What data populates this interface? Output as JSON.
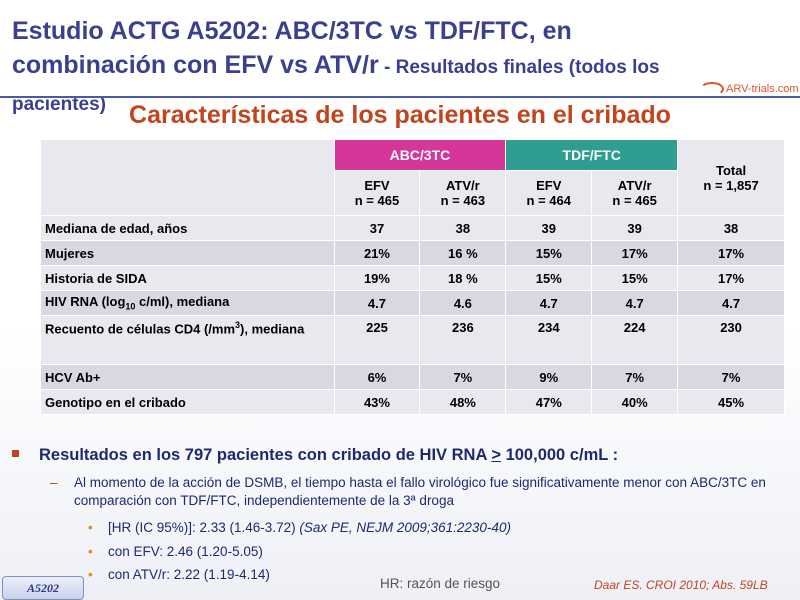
{
  "title": {
    "main": "Estudio ACTG A5202: ABC/3TC vs TDF/FTC, en combinación con EFV vs ATV/r",
    "sub": " - Resultados finales (todos los pacientes)"
  },
  "logo": "ARV-trials.com",
  "heading": "Características de los pacientes en el cribado",
  "table": {
    "group_abc": "ABC/3TC",
    "group_tdf": "TDF/FTC",
    "total_label": "Total",
    "total_n": "n = 1,857",
    "cols": [
      {
        "drug": "EFV",
        "n": "n = 465"
      },
      {
        "drug": "ATV/r",
        "n": "n = 463"
      },
      {
        "drug": "EFV",
        "n": "n = 464"
      },
      {
        "drug": "ATV/r",
        "n": "n = 465"
      }
    ],
    "rows": [
      {
        "label": "Mediana de edad, años",
        "values": [
          "37",
          "38",
          "39",
          "39",
          "38"
        ]
      },
      {
        "label": "Mujeres",
        "values": [
          "21%",
          "16 %",
          "15%",
          "17%",
          "17%"
        ]
      },
      {
        "label": "Historia de SIDA",
        "values": [
          "19%",
          "18 %",
          "15%",
          "15%",
          "17%"
        ]
      },
      {
        "label_pre": "HIV RNA (log",
        "label_sub": "10",
        "label_post": " c/ml), mediana",
        "values": [
          "4.7",
          "4.6",
          "4.7",
          "4.7",
          "4.7"
        ]
      },
      {
        "label_pre": "Recuento de células CD4 (/mm",
        "label_sup": "3",
        "label_post": "), mediana",
        "values": [
          "225",
          "236",
          "234",
          "224",
          "230"
        ]
      },
      {
        "label": "HCV Ab+",
        "values": [
          "6%",
          "7%",
          "9%",
          "7%",
          "7%"
        ]
      },
      {
        "label": "Genotipo en el cribado",
        "values": [
          "43%",
          "48%",
          "47%",
          "40%",
          "45%"
        ]
      }
    ]
  },
  "bullets": {
    "main_pre": "Resultados en los 797 pacientes con cribado de HIV RNA ",
    "main_ge": ">",
    "main_post": " 100,000 c/mL :",
    "sub": "Al momento de la acción de DSMB, el tiempo hasta el fallo virológico fue significativamente menor con ABC/3TC en comparación con TDF/FTC, independientemente de la 3ª droga",
    "item1_pre": "[HR (IC 95%)]: 2.33 (1.46-3.72) ",
    "item1_ref": "(Sax PE, NEJM 2009;361:2230-40)",
    "item2": "con EFV: 2.46 (1.20-5.05)",
    "item3": "con ATV/r: 2.22 (1.19-4.14)"
  },
  "footer": {
    "badge": "A5202",
    "hr_note": "HR: razón de riesgo",
    "reference": "Daar ES. CROI 2010; Abs. 59LB"
  },
  "colors": {
    "title": "#3a3f8f",
    "heading": "#c1441c",
    "abc_header": "#d63699",
    "tdf_header": "#2e9e91",
    "table_light": "#e8e8ee",
    "table_dark": "#d8d8e2"
  }
}
